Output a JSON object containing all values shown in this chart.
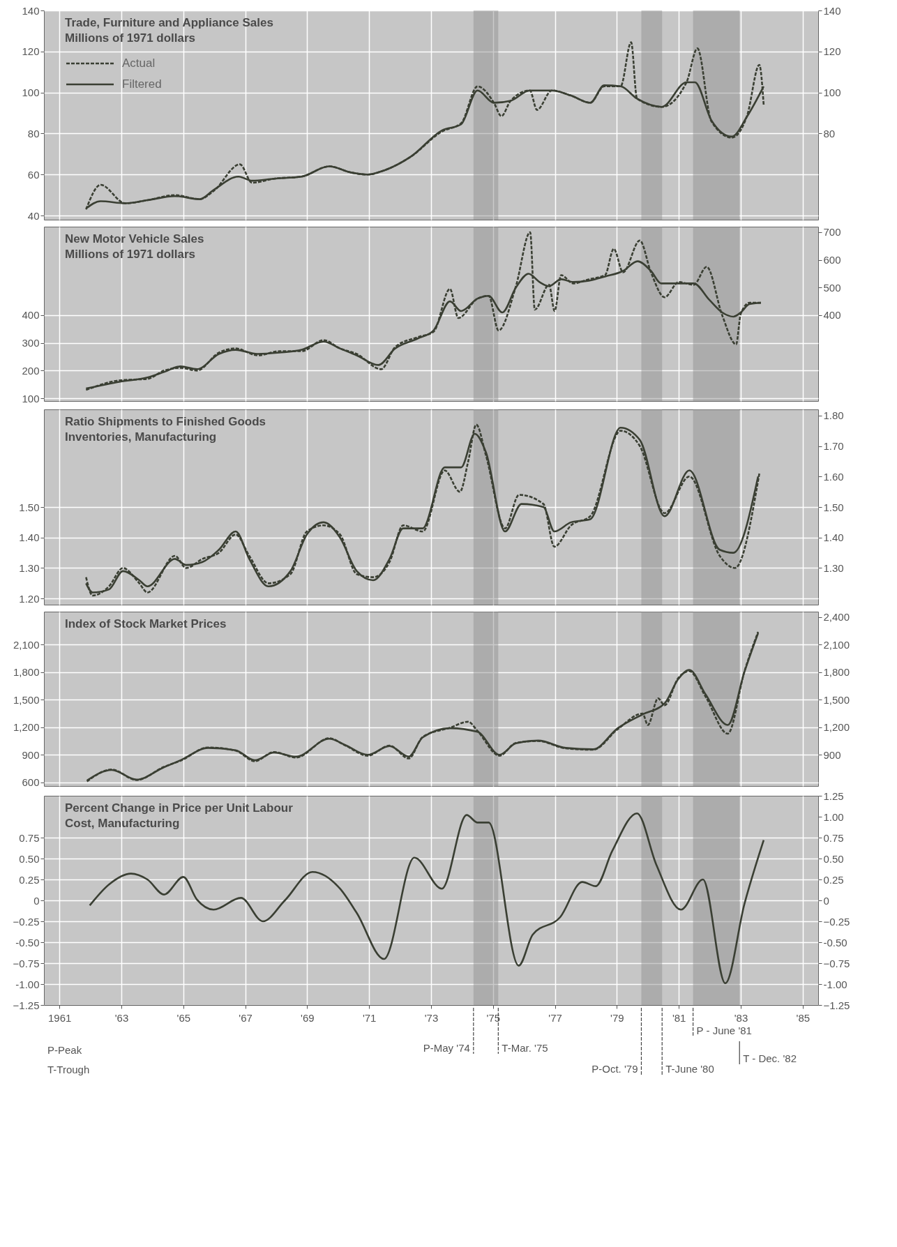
{
  "chart_data": [
    {
      "type": "line",
      "title": "Trade, Furniture and Appliance Sales",
      "subtitle": "Millions of 1971 dollars",
      "xlim": [
        1960.5,
        1985.5
      ],
      "xticks": [
        1961,
        1963,
        1965,
        1967,
        1969,
        1971,
        1973,
        1975,
        1977,
        1979,
        1981,
        1983,
        1985
      ],
      "ylim": [
        38,
        140
      ],
      "yticks": [
        40,
        60,
        80,
        100,
        120,
        140
      ],
      "y2lim": [
        38,
        140
      ],
      "y2ticks": [
        80,
        100,
        120,
        140
      ],
      "tick_labels": "y",
      "grid": true,
      "legend": "top left",
      "bands": [
        {
          "axis": "x",
          "from": 1974.37,
          "to": 1975.17,
          "color": "#8c8c8c"
        },
        {
          "axis": "x",
          "from": 1979.79,
          "to": 1980.46,
          "color": "#8c8c8c"
        },
        {
          "axis": "x",
          "from": 1981.46,
          "to": 1982.96,
          "color": "#8c8c8c"
        }
      ],
      "series": [
        {
          "name": "Actual",
          "color": "#3a3f33",
          "line_style": "dashed",
          "x": [
            1961.86,
            1962.33,
            1963.13,
            1963.84,
            1964.73,
            1965.53,
            1965.98,
            1966.83,
            1967.22,
            1967.93,
            1968.82,
            1969.71,
            1970.42,
            1970.95,
            1971.48,
            1972.37,
            1973.35,
            1973.97,
            1974.5,
            1975.03,
            1975.27,
            1975.57,
            1976.19,
            1976.42,
            1976.9,
            1977.52,
            1978.14,
            1978.59,
            1979.12,
            1979.46,
            1979.65,
            1980.45,
            1981.25,
            1981.6,
            1982.05,
            1982.71,
            1983.21,
            1983.6,
            1983.74
          ],
          "values": [
            43,
            55,
            46,
            47.5,
            50,
            48,
            52,
            65,
            56,
            58,
            59,
            64,
            61,
            60,
            62,
            69,
            81,
            85,
            103,
            95,
            88.5,
            96,
            101,
            91.5,
            101,
            98.5,
            95,
            103,
            103,
            124.5,
            97,
            93,
            105,
            121.5,
            86,
            78,
            89,
            113.5,
            94
          ]
        },
        {
          "name": "Filtered",
          "color": "#3a3f33",
          "line_style": "solid",
          "x": [
            1961.86,
            1962.33,
            1963.13,
            1963.84,
            1964.73,
            1965.53,
            1965.98,
            1966.78,
            1967.22,
            1967.93,
            1968.82,
            1969.71,
            1970.42,
            1970.95,
            1971.48,
            1972.37,
            1973.35,
            1973.97,
            1974.5,
            1975.03,
            1975.57,
            1976.19,
            1976.9,
            1977.52,
            1978.14,
            1978.59,
            1979.12,
            1979.65,
            1980.45,
            1981.25,
            1981.52,
            1982.05,
            1982.71,
            1983.21,
            1983.74
          ],
          "values": [
            43.5,
            47,
            46,
            47.5,
            49.5,
            48,
            52.5,
            59,
            57,
            58,
            59,
            64,
            61,
            60,
            62,
            69,
            81.5,
            84.5,
            101,
            95,
            96,
            101,
            101,
            98.5,
            95,
            103.5,
            103,
            97,
            93,
            105,
            105,
            86.5,
            78.5,
            88.5,
            103
          ]
        }
      ]
    },
    {
      "type": "line",
      "title": "New Motor Vehicle Sales",
      "subtitle": "Millions of 1971 dollars",
      "xlim": [
        1960.5,
        1985.5
      ],
      "xticks": [
        1961,
        1963,
        1965,
        1967,
        1969,
        1971,
        1973,
        1975,
        1977,
        1979,
        1981,
        1983,
        1985
      ],
      "ylim": [
        90,
        720
      ],
      "yticks": [
        100,
        200,
        300,
        400
      ],
      "y2lim": [
        90,
        720
      ],
      "y2ticks": [
        400,
        500,
        600,
        700
      ],
      "tick_labels": "y",
      "grid": true,
      "bands": [
        {
          "axis": "x",
          "from": 1974.37,
          "to": 1975.17,
          "color": "#8c8c8c"
        },
        {
          "axis": "x",
          "from": 1979.79,
          "to": 1980.46,
          "color": "#8c8c8c"
        },
        {
          "axis": "x",
          "from": 1981.46,
          "to": 1982.96,
          "color": "#8c8c8c"
        }
      ],
      "series": [
        {
          "color": "#3a3f33",
          "line_style": "dashed",
          "x": [
            1961.86,
            1962.96,
            1963.84,
            1964.38,
            1964.91,
            1965.44,
            1966.15,
            1966.69,
            1967.4,
            1968.11,
            1968.82,
            1969.53,
            1970.06,
            1970.6,
            1971.39,
            1971.84,
            1972.55,
            1973.08,
            1973.61,
            1973.88,
            1974.5,
            1974.86,
            1975.18,
            1975.74,
            1976.2,
            1976.35,
            1976.81,
            1976.99,
            1977.2,
            1977.59,
            1978.1,
            1978.62,
            1978.9,
            1979.2,
            1979.74,
            1980.1,
            1980.54,
            1981.0,
            1981.48,
            1981.9,
            1982.4,
            1982.85,
            1983.0,
            1983.28,
            1983.65
          ],
          "values": [
            130,
            165,
            170,
            200,
            210,
            200,
            265,
            280,
            255,
            270,
            270,
            310,
            280,
            260,
            205,
            285,
            320,
            340,
            495,
            390,
            460,
            470,
            345,
            505,
            700,
            420,
            510,
            415,
            545,
            515,
            530,
            545,
            640,
            555,
            670,
            555,
            465,
            520,
            510,
            575,
            400,
            295,
            405,
            445,
            445
          ]
        },
        {
          "color": "#3a3f33",
          "line_style": "solid",
          "x": [
            1961.86,
            1962.96,
            1963.84,
            1964.38,
            1964.91,
            1965.44,
            1966.15,
            1966.69,
            1967.4,
            1968.11,
            1968.82,
            1969.53,
            1970.06,
            1970.6,
            1971.3,
            1971.84,
            1972.55,
            1973.08,
            1973.61,
            1973.97,
            1974.5,
            1974.86,
            1975.3,
            1975.74,
            1976.15,
            1976.5,
            1976.81,
            1977.2,
            1977.59,
            1978.1,
            1978.62,
            1979.2,
            1979.67,
            1980.1,
            1980.43,
            1981.0,
            1981.48,
            1981.99,
            1982.4,
            1982.76,
            1983.0,
            1983.28,
            1983.65
          ],
          "values": [
            135,
            160,
            175,
            195,
            215,
            205,
            260,
            275,
            260,
            265,
            275,
            305,
            280,
            255,
            220,
            280,
            315,
            345,
            450,
            415,
            460,
            470,
            410,
            500,
            550,
            520,
            505,
            530,
            520,
            525,
            540,
            560,
            595,
            560,
            515,
            515,
            515,
            455,
            410,
            395,
            410,
            440,
            445
          ]
        }
      ]
    },
    {
      "type": "line",
      "title": "Ratio Shipments to Finished Goods Inventories, Manufacturing",
      "xlim": [
        1960.5,
        1985.5
      ],
      "xticks": [
        1961,
        1963,
        1965,
        1967,
        1969,
        1971,
        1973,
        1975,
        1977,
        1979,
        1981,
        1983,
        1985
      ],
      "ylim": [
        1.18,
        1.82
      ],
      "yticks": [
        {
          "value": 1.2,
          "label": "1.20"
        },
        {
          "value": 1.3,
          "label": "1.30"
        },
        {
          "value": 1.4,
          "label": "1.40"
        },
        {
          "value": 1.5,
          "label": "1.50"
        }
      ],
      "y2lim": [
        1.18,
        1.82
      ],
      "y2ticks": [
        {
          "value": 1.3,
          "label": "1.30"
        },
        {
          "value": 1.4,
          "label": "1.40"
        },
        {
          "value": 1.5,
          "label": "1.50"
        },
        {
          "value": 1.6,
          "label": "1.60"
        },
        {
          "value": 1.7,
          "label": "1.70"
        },
        {
          "value": 1.8,
          "label": "1.80"
        }
      ],
      "tick_labels": "y",
      "grid": true,
      "bands": [
        {
          "axis": "x",
          "from": 1974.37,
          "to": 1975.17,
          "color": "#8c8c8c"
        },
        {
          "axis": "x",
          "from": 1979.79,
          "to": 1980.46,
          "color": "#8c8c8c"
        },
        {
          "axis": "x",
          "from": 1981.46,
          "to": 1982.96,
          "color": "#8c8c8c"
        }
      ],
      "series": [
        {
          "color": "#3a3f33",
          "line_style": "dashed",
          "x": [
            1961.86,
            1962.07,
            1962.6,
            1963.05,
            1963.58,
            1963.84,
            1964.73,
            1965.09,
            1965.62,
            1966.15,
            1966.69,
            1967.13,
            1967.75,
            1968.46,
            1968.99,
            1969.53,
            1970.06,
            1970.6,
            1971.13,
            1971.66,
            1972.1,
            1972.73,
            1973.44,
            1973.93,
            1974.2,
            1974.46,
            1974.77,
            1975.39,
            1975.84,
            1976.63,
            1976.98,
            1977.52,
            1978.14,
            1979.12,
            1979.74,
            1980.54,
            1981.34,
            1982.32,
            1982.81,
            1983.6
          ],
          "values": [
            1.27,
            1.21,
            1.24,
            1.3,
            1.25,
            1.22,
            1.34,
            1.3,
            1.33,
            1.35,
            1.41,
            1.34,
            1.25,
            1.28,
            1.42,
            1.44,
            1.41,
            1.28,
            1.27,
            1.32,
            1.44,
            1.42,
            1.62,
            1.55,
            1.65,
            1.77,
            1.67,
            1.43,
            1.54,
            1.51,
            1.37,
            1.44,
            1.47,
            1.75,
            1.7,
            1.48,
            1.6,
            1.34,
            1.3,
            1.61
          ]
        },
        {
          "color": "#3a3f33",
          "line_style": "solid",
          "x": [
            1961.86,
            1962.07,
            1962.6,
            1963.05,
            1963.58,
            1963.84,
            1964.73,
            1965.09,
            1965.62,
            1966.15,
            1966.69,
            1967.13,
            1967.75,
            1968.46,
            1968.99,
            1969.53,
            1970.06,
            1970.6,
            1971.13,
            1971.66,
            1972.1,
            1972.73,
            1973.44,
            1973.97,
            1974.41,
            1974.77,
            1975.39,
            1975.92,
            1976.63,
            1976.98,
            1977.52,
            1978.14,
            1979.12,
            1979.74,
            1980.54,
            1981.34,
            1982.32,
            1982.76,
            1983.56
          ],
          "values": [
            1.25,
            1.22,
            1.23,
            1.29,
            1.26,
            1.24,
            1.33,
            1.31,
            1.32,
            1.36,
            1.42,
            1.33,
            1.24,
            1.29,
            1.41,
            1.45,
            1.4,
            1.29,
            1.26,
            1.33,
            1.43,
            1.43,
            1.63,
            1.63,
            1.74,
            1.68,
            1.42,
            1.51,
            1.5,
            1.42,
            1.45,
            1.46,
            1.76,
            1.72,
            1.47,
            1.62,
            1.36,
            1.35,
            1.6
          ]
        }
      ]
    },
    {
      "type": "line",
      "title": "Index of Stock Market Prices",
      "xlim": [
        1960.5,
        1985.5
      ],
      "xticks": [
        1961,
        1963,
        1965,
        1967,
        1969,
        1971,
        1973,
        1975,
        1977,
        1979,
        1981,
        1983,
        1985
      ],
      "ylim": [
        560,
        2460
      ],
      "yticks": [
        600,
        900,
        {
          "value": 1200,
          "label": "1,200"
        },
        {
          "value": 1500,
          "label": "1,500"
        },
        {
          "value": 1800,
          "label": "1,800"
        },
        {
          "value": 2100,
          "label": "2,100"
        }
      ],
      "y2lim": [
        560,
        2460
      ],
      "y2ticks": [
        900,
        {
          "value": 1200,
          "label": "1,200"
        },
        {
          "value": 1500,
          "label": "1,500"
        },
        {
          "value": 1800,
          "label": "1,800"
        },
        {
          "value": 2100,
          "label": "2,100"
        },
        {
          "value": 2400,
          "label": "2,400"
        }
      ],
      "tick_labels": "y",
      "grid": true,
      "bands": [
        {
          "axis": "x",
          "from": 1974.37,
          "to": 1975.17,
          "color": "#8c8c8c"
        },
        {
          "axis": "x",
          "from": 1979.79,
          "to": 1980.46,
          "color": "#8c8c8c"
        },
        {
          "axis": "x",
          "from": 1981.46,
          "to": 1982.96,
          "color": "#8c8c8c"
        }
      ],
      "series": [
        {
          "color": "#3a3f33",
          "line_style": "dashed",
          "x": [
            1961.89,
            1962.69,
            1963.49,
            1964.38,
            1964.91,
            1965.8,
            1966.69,
            1967.31,
            1967.93,
            1968.64,
            1969.71,
            1970.24,
            1970.95,
            1971.66,
            1972.28,
            1972.73,
            1973.61,
            1974.2,
            1974.5,
            1975.21,
            1975.74,
            1976.46,
            1977.35,
            1978.23,
            1979.03,
            1979.83,
            1980.0,
            1980.33,
            1980.54,
            1980.98,
            1981.34,
            1981.87,
            1982.58,
            1983.12,
            1983.56
          ],
          "values": [
            610,
            740,
            625,
            770,
            835,
            980,
            945,
            830,
            930,
            870,
            1080,
            1000,
            890,
            1000,
            860,
            1095,
            1195,
            1260,
            1160,
            890,
            1030,
            1050,
            970,
            955,
            1180,
            1350,
            1225,
            1515,
            1440,
            1735,
            1810,
            1530,
            1130,
            1810,
            2240
          ]
        },
        {
          "color": "#3a3f33",
          "line_style": "solid",
          "x": [
            1961.89,
            1962.69,
            1963.49,
            1964.38,
            1964.91,
            1965.8,
            1966.69,
            1967.31,
            1967.93,
            1968.64,
            1969.71,
            1970.24,
            1970.95,
            1971.66,
            1972.28,
            1972.73,
            1973.61,
            1974.5,
            1975.21,
            1975.74,
            1976.46,
            1977.35,
            1978.23,
            1979.03,
            1979.83,
            1980.54,
            1980.98,
            1981.34,
            1981.87,
            1982.58,
            1983.12,
            1983.56
          ],
          "values": [
            620,
            735,
            630,
            765,
            840,
            975,
            950,
            840,
            925,
            880,
            1075,
            1005,
            900,
            995,
            880,
            1090,
            1190,
            1150,
            900,
            1025,
            1055,
            975,
            960,
            1190,
            1340,
            1460,
            1725,
            1825,
            1555,
            1225,
            1805,
            2225
          ]
        }
      ]
    },
    {
      "type": "line",
      "title": "Percent Change in Price per Unit Labour Cost, Manufacturing",
      "xlim": [
        1960.5,
        1985.5
      ],
      "xticks": [
        {
          "value": 1961,
          "label": "1961"
        },
        {
          "value": 1963,
          "label": "'63"
        },
        {
          "value": 1965,
          "label": "'65"
        },
        {
          "value": 1967,
          "label": "'67"
        },
        {
          "value": 1969,
          "label": "'69"
        },
        {
          "value": 1971,
          "label": "'71"
        },
        {
          "value": 1973,
          "label": "'73"
        },
        {
          "value": 1975,
          "label": "'75"
        },
        {
          "value": 1977,
          "label": "'77"
        },
        {
          "value": 1979,
          "label": "'79"
        },
        {
          "value": 1981,
          "label": "'81"
        },
        {
          "value": 1983,
          "label": "'83"
        },
        {
          "value": 1985,
          "label": "'85"
        }
      ],
      "ylim": [
        -1.25,
        1.25
      ],
      "yticks": [
        -1.25,
        {
          "value": -1,
          "label": "-1.00"
        },
        -0.75,
        {
          "value": -0.5,
          "label": "-0.50"
        },
        -0.25,
        0,
        0.25,
        {
          "value": 0.5,
          "label": "0.50"
        },
        0.75
      ],
      "y2lim": [
        -1.25,
        1.25
      ],
      "y2ticks": [
        -1.25,
        {
          "value": -1,
          "label": "-1.00"
        },
        -0.75,
        {
          "value": -0.5,
          "label": "-0.50"
        },
        -0.25,
        0,
        0.25,
        {
          "value": 0.5,
          "label": "0.50"
        },
        0.75,
        {
          "value": 1,
          "label": "1.00"
        },
        1.25
      ],
      "grid": true,
      "bands": [
        {
          "axis": "x",
          "from": 1974.37,
          "to": 1975.17,
          "color": "#8c8c8c"
        },
        {
          "axis": "x",
          "from": 1979.79,
          "to": 1980.46,
          "color": "#8c8c8c"
        },
        {
          "axis": "x",
          "from": 1981.46,
          "to": 1982.96,
          "color": "#8c8c8c"
        }
      ],
      "ref_lines": [
        {
          "axis": "x",
          "value": 1974.37,
          "label": "P-May '74",
          "line_style": "dashed"
        },
        {
          "axis": "x",
          "value": 1975.17,
          "label": "T-Mar. '75",
          "line_style": "dashed"
        },
        {
          "axis": "x",
          "value": 1979.79,
          "label": "P-Oct. '79",
          "line_style": "dashed"
        },
        {
          "axis": "x",
          "value": 1980.46,
          "label": "T-June '80",
          "line_style": "dashed"
        },
        {
          "axis": "x",
          "value": 1981.46,
          "label": "P - June '81",
          "line_style": "dashed"
        },
        {
          "axis": "x",
          "value": 1982.96,
          "label": "T - Dec. '82",
          "line_style": "solid"
        }
      ],
      "annotations": [
        "P-Peak",
        "T-Trough"
      ],
      "series": [
        {
          "color": "#3a3f33",
          "line_style": "solid",
          "x": [
            1961.98,
            1962.6,
            1963.31,
            1963.84,
            1964.38,
            1965.0,
            1965.44,
            1965.98,
            1966.86,
            1967.57,
            1968.28,
            1969.17,
            1970.06,
            1970.6,
            1971.48,
            1972.46,
            1973.35,
            1974.15,
            1974.5,
            1974.86,
            1975.83,
            1976.28,
            1977.17,
            1977.88,
            1978.32,
            1978.85,
            1979.65,
            1980.27,
            1981.07,
            1981.78,
            1982.5,
            1983.12,
            1983.74
          ],
          "values": [
            -0.06,
            0.19,
            0.32,
            0.25,
            0.07,
            0.28,
            0.01,
            -0.11,
            0.03,
            -0.25,
            0,
            0.34,
            0.14,
            -0.15,
            -0.7,
            0.51,
            0.14,
            1.02,
            0.93,
            0.93,
            -0.78,
            -0.41,
            -0.2,
            0.22,
            0.17,
            0.59,
            1.04,
            0.43,
            -0.11,
            0.25,
            -0.99,
            -0.04,
            0.72
          ]
        }
      ]
    }
  ]
}
